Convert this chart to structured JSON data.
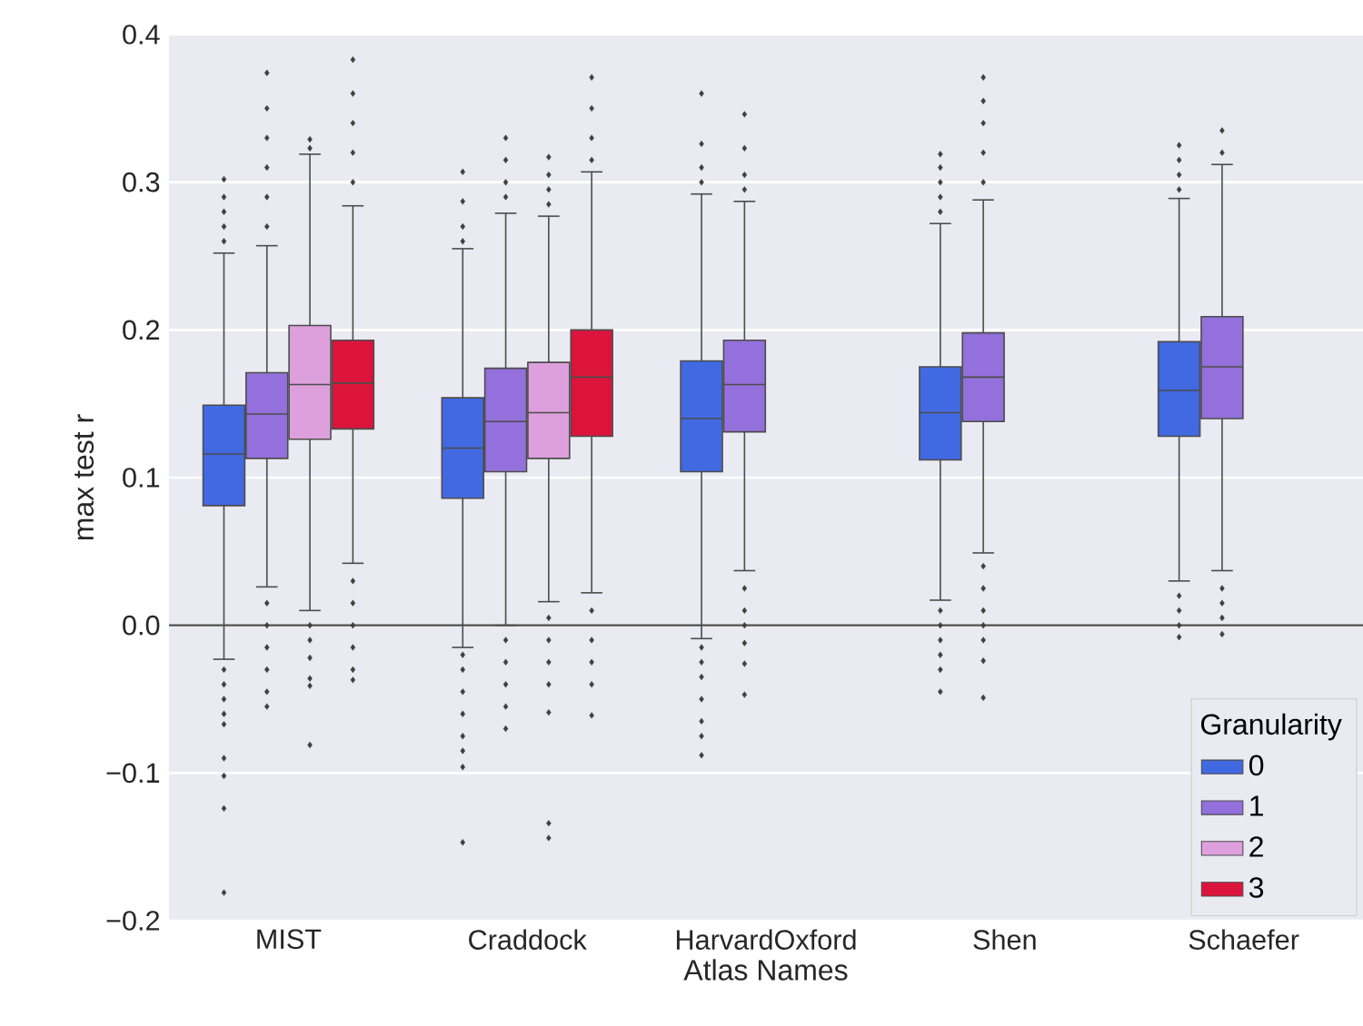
{
  "chart_data": {
    "type": "box",
    "xlabel": "Atlas Names",
    "ylabel": "max test r",
    "legend_title": "Granularity",
    "legend": "bottom right",
    "grid": "y",
    "categories": [
      "MIST",
      "Craddock",
      "HarvardOxford",
      "Shen",
      "Schaefer"
    ],
    "ylim": [
      -0.2,
      0.4
    ],
    "yticks": [
      {
        "value": -0.2,
        "label": "−0.2"
      },
      {
        "value": -0.1,
        "label": "−0.1"
      },
      {
        "value": 0,
        "label": "0.0"
      },
      0.1,
      0.2,
      0.3,
      0.4
    ],
    "ref_lines": [
      {
        "axis": "y",
        "value": 0,
        "color": "#4d4d4d"
      }
    ],
    "marker": "diamond",
    "series": [
      {
        "name": "0",
        "color": "#4169e1",
        "boxes": [
          {
            "low": -0.023,
            "q1": 0.081,
            "median": 0.116,
            "q3": 0.149,
            "high": 0.252,
            "outliers": [
              0.26,
              0.27,
              0.28,
              0.29,
              0.302,
              -0.03,
              -0.04,
              -0.05,
              -0.06,
              -0.067,
              -0.09,
              -0.102,
              -0.124,
              -0.181
            ]
          },
          {
            "low": -0.015,
            "q1": 0.086,
            "median": 0.12,
            "q3": 0.154,
            "high": 0.255,
            "outliers": [
              0.26,
              0.27,
              0.287,
              0.307,
              -0.02,
              -0.03,
              -0.045,
              -0.06,
              -0.075,
              -0.085,
              -0.096,
              -0.147
            ]
          },
          {
            "low": -0.009,
            "q1": 0.104,
            "median": 0.14,
            "q3": 0.179,
            "high": 0.292,
            "outliers": [
              0.3,
              0.31,
              0.326,
              0.36,
              -0.015,
              -0.025,
              -0.035,
              -0.05,
              -0.065,
              -0.075,
              -0.088
            ]
          },
          {
            "low": 0.017,
            "q1": 0.112,
            "median": 0.144,
            "q3": 0.175,
            "high": 0.272,
            "outliers": [
              0.28,
              0.29,
              0.3,
              0.31,
              0.319,
              0.01,
              0.0,
              -0.01,
              -0.02,
              -0.03,
              -0.045
            ]
          },
          {
            "low": 0.03,
            "q1": 0.128,
            "median": 0.159,
            "q3": 0.192,
            "high": 0.289,
            "outliers": [
              0.295,
              0.305,
              0.315,
              0.325,
              0.02,
              0.01,
              0.0,
              -0.008
            ]
          }
        ]
      },
      {
        "name": "1",
        "color": "#9370db",
        "boxes": [
          {
            "low": 0.026,
            "q1": 0.113,
            "median": 0.143,
            "q3": 0.171,
            "high": 0.257,
            "outliers": [
              0.27,
              0.29,
              0.31,
              0.33,
              0.35,
              0.374,
              0.015,
              0.0,
              -0.015,
              -0.03,
              -0.045,
              -0.055
            ]
          },
          {
            "low": 0.0,
            "q1": 0.104,
            "median": 0.138,
            "q3": 0.174,
            "high": 0.279,
            "outliers": [
              0.29,
              0.3,
              0.315,
              0.33,
              -0.01,
              -0.025,
              -0.04,
              -0.055,
              -0.07
            ]
          },
          {
            "low": 0.037,
            "q1": 0.131,
            "median": 0.163,
            "q3": 0.193,
            "high": 0.287,
            "outliers": [
              0.295,
              0.305,
              0.323,
              0.346,
              0.025,
              0.01,
              0.0,
              -0.012,
              -0.026,
              -0.047
            ]
          },
          {
            "low": 0.049,
            "q1": 0.138,
            "median": 0.168,
            "q3": 0.198,
            "high": 0.288,
            "outliers": [
              0.3,
              0.32,
              0.34,
              0.355,
              0.371,
              0.04,
              0.025,
              0.01,
              0.0,
              -0.01,
              -0.024,
              -0.049
            ]
          },
          {
            "low": 0.037,
            "q1": 0.14,
            "median": 0.175,
            "q3": 0.209,
            "high": 0.312,
            "outliers": [
              0.32,
              0.335,
              0.025,
              0.015,
              0.005,
              -0.006
            ]
          }
        ]
      },
      {
        "name": "2",
        "color": "#dda0dd",
        "boxes": [
          {
            "low": 0.01,
            "q1": 0.126,
            "median": 0.163,
            "q3": 0.203,
            "high": 0.319,
            "outliers": [
              0.323,
              0.329,
              0.0,
              -0.01,
              -0.022,
              -0.036,
              -0.041,
              -0.081
            ]
          },
          {
            "low": 0.016,
            "q1": 0.113,
            "median": 0.144,
            "q3": 0.178,
            "high": 0.277,
            "outliers": [
              0.285,
              0.295,
              0.305,
              0.317,
              0.005,
              -0.01,
              -0.025,
              -0.04,
              -0.059,
              -0.134,
              -0.144
            ]
          },
          null,
          null,
          null
        ]
      },
      {
        "name": "3",
        "color": "#dc143c",
        "boxes": [
          {
            "low": 0.042,
            "q1": 0.133,
            "median": 0.164,
            "q3": 0.193,
            "high": 0.284,
            "outliers": [
              0.3,
              0.32,
              0.34,
              0.36,
              0.383,
              0.03,
              0.015,
              0.0,
              -0.015,
              -0.03,
              -0.037
            ]
          },
          {
            "low": 0.022,
            "q1": 0.128,
            "median": 0.168,
            "q3": 0.2,
            "high": 0.307,
            "outliers": [
              0.315,
              0.33,
              0.35,
              0.371,
              0.01,
              -0.01,
              -0.025,
              -0.04,
              -0.061
            ]
          },
          null,
          null,
          null
        ]
      }
    ]
  }
}
